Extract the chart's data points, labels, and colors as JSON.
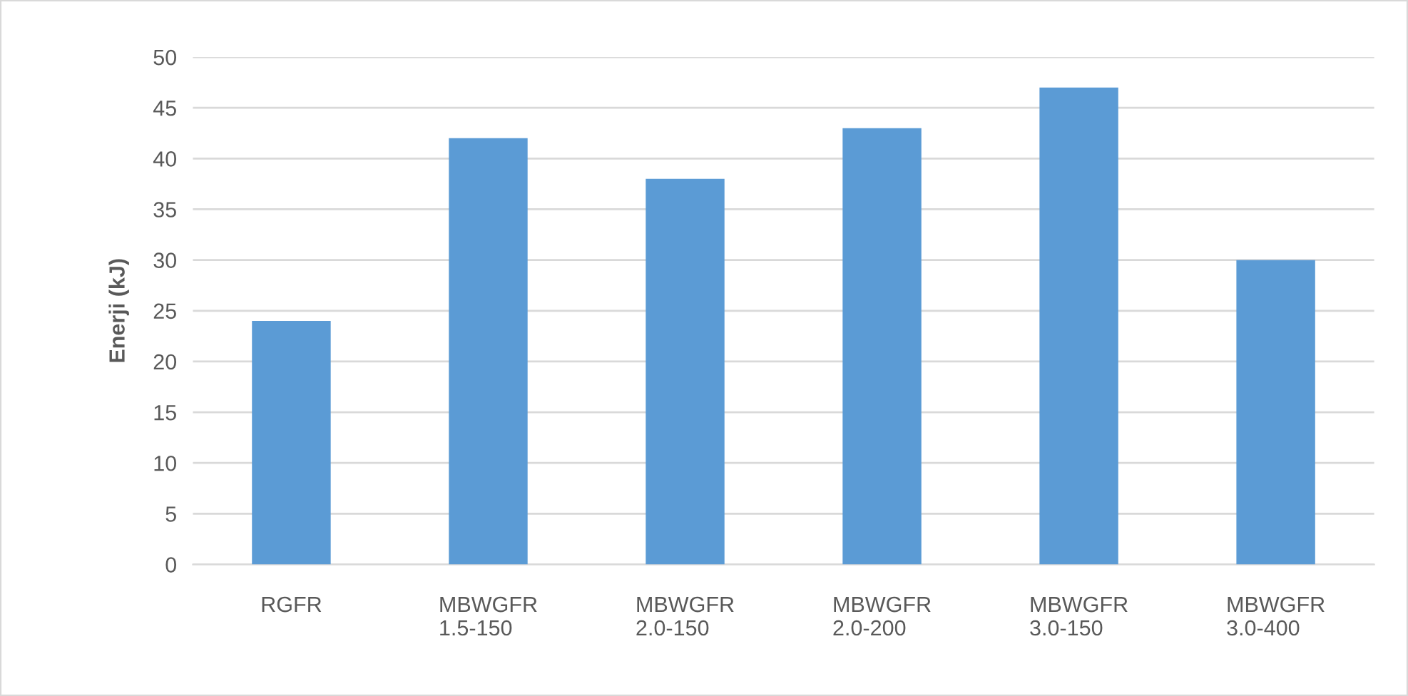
{
  "chart_data": {
    "type": "bar",
    "ylabel": "Enerji (kJ)",
    "categories": [
      "RGFR",
      "MBWGFR\n1.5-150",
      "MBWGFR\n2.0-150",
      "MBWGFR\n2.0-200",
      "MBWGFR\n3.0-150",
      "MBWGFR\n3.0-400"
    ],
    "values": [
      24,
      42,
      38,
      43,
      47,
      30
    ],
    "color": "#5b9bd5",
    "ylim": [
      0,
      50
    ],
    "yticks": [
      0,
      5,
      10,
      15,
      20,
      25,
      30,
      35,
      40,
      45,
      50
    ],
    "grid": "y",
    "legend": false
  }
}
